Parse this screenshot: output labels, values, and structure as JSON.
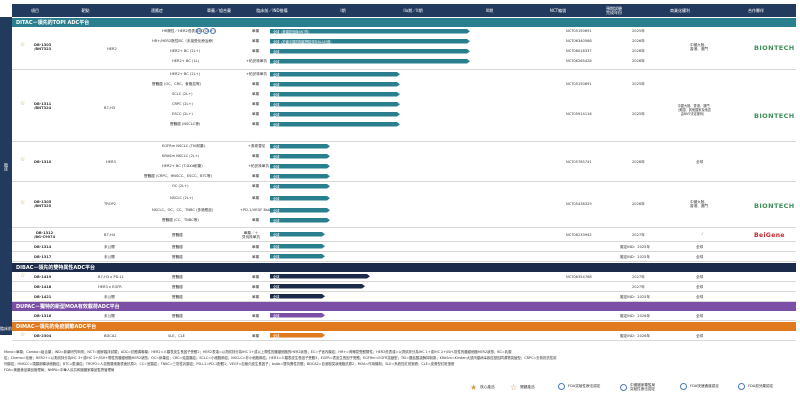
{
  "header": {
    "cols": [
      "項目",
      "靶點",
      "適應症",
      "單藥／組合藥",
      "臨床前／IND推備",
      "I期",
      "IIa期／II期",
      "III期",
      "NCT編號",
      "預期試驗\n完成年份",
      "商業化權利",
      "合作夥伴"
    ]
  },
  "sidebar": {
    "main_label": "臨床",
    "sub_label": "臨床前"
  },
  "sections": {
    "ditac": "DITAC－領先的TOPI ADC平台",
    "dibac": "DIBAC－領先的雙特異性ADC平台",
    "dupac": "DUPAC－獨特的新型MOA有效載荷ADC平台",
    "dimac": "DIMAC－領先的免疫調節ADC平台"
  },
  "products": {
    "db1303": "DB-1303\n/BNT323",
    "db1311": "DB-1311\n/BNT324",
    "db1310": "DB-1310",
    "db1305": "DB-1305\n/BNT325",
    "db1312": "DB-1312\n/BG-C9074",
    "db1314": "DB-1314",
    "db1317": "DB-1317",
    "db1419": "DB-1419",
    "db1418": "DB-1418",
    "db1421": "DB-1421",
    "db1316": "DB-1316",
    "db2304": "DB-2304"
  },
  "targets": {
    "her2": "HER2",
    "b7h3": "B7-H3",
    "her3": "HER3",
    "trop2": "TROP2",
    "b7h4": "B7-H4",
    "undisclosed": "未公開",
    "b7h3pdl1": "B7-H3 x PD-L1",
    "her3egfr": "HER3 x EGFR",
    "bdca2": "BDCA2"
  },
  "indications": {
    "r1": "HR陽性／HER2低表達BC (2L+)",
    "r2": "HR+/HER2陰性BC（未接受化療治療）",
    "r3": "HER2+ BC (2L+)",
    "r4": "HER2+ BC (1L)",
    "r5": "實體瘤 (OC、CRC、食管癌等)",
    "r6": "SCLC (2L+)",
    "r7": "CRPC (2L+)",
    "r8": "ESCC (2L+)",
    "r9": "實體瘤 (NSCLC等)",
    "r10": "EGFRm NSCLC (TKI耐藥)",
    "r11": "KRASm NSCLC (2L+)",
    "r12": "HER2+ BC (T-DXd耐藥)",
    "r13": "實體瘤 (CRPC、HNSCC、ESCC、BTC等)",
    "r14": "OC (2L+)",
    "r15": "NSCLC (2L+)",
    "r16": "NSCLC、OC、CC、TNBC (多適應症)",
    "r17": "實體瘤 (CC、TNBC等)",
    "r18": "實體瘤",
    "r19": "實體瘤",
    "r20": "實體瘤",
    "r21": "實體瘤",
    "r22": "實體瘤",
    "r23": "實體瘤",
    "r24": "實體瘤",
    "r25": "SLE、CLE"
  },
  "regimen": {
    "mono": "單藥",
    "combo1": "+帕妥珠單抗",
    "combo2": "+奧希替尼",
    "combo3": "+恩扎盧胺",
    "combo4": "+PD-1/VEGF BsAb",
    "combo5": "單藥／＋\n貝伐珠單抗"
  },
  "bars": {
    "b1": "全球（美國首個與BNT的）",
    "b2": "全球（於囊中國的關鍵實驗資料BLA計劃）",
    "b3": "全球",
    "b4": "全球",
    "b5": "全球",
    "b6": "全球",
    "b7": "全球",
    "b8": "全球",
    "b9": "全球",
    "b10": "全球",
    "b11": "全球",
    "b12": "全球",
    "b13": "全球",
    "b14": "全球",
    "b15": "全球",
    "b16": "全球",
    "b17": "全球",
    "b18": "全球",
    "b19": "全球",
    "b20": "全球",
    "b21": "全球",
    "b22": "全球",
    "b23": "全球",
    "b24": "全球",
    "b25": "全球",
    "b26": "全球",
    "b27": "全球",
    "b28": "全球",
    "b29": "全球"
  },
  "nct": {
    "n1": "NCT05150691",
    "n2": "NCT06340568",
    "n3": "NCT06018337",
    "n4": "NCT06265428",
    "n5": "NCT05150691",
    "n6": "NCT05914116",
    "n7": "NCT05785741",
    "n8": "NCT05438329",
    "n9": "NCT06233942",
    "n10": "NCT06354768",
    "n11": "—",
    "n12": "—"
  },
  "years": {
    "y1": "2025年",
    "y2": "2026年",
    "y3": "2026年",
    "y4": "2026年",
    "y5": "2025年",
    "y6": "2025年",
    "y7": "2026年",
    "y8": "2026年",
    "y9": "2027年",
    "y10": "擬定IND：2025年",
    "y11": "擬定IND：2025年",
    "y12": "2027年",
    "y13": "2027年",
    "y14": "擬定IND：2025年",
    "y15": "擬定IND：2026年",
    "y16": "擬定IND：2026年"
  },
  "rights": {
    "r1": "中國大陸、\n香港、澳門",
    "r2": "中國大陸、香港、澳門\n（美國、其他國家及地區\n由BNT決定權利）",
    "r3": "全球",
    "r4": "中國大陸、\n香港、澳門",
    "r5": "全球",
    "r6": "全球",
    "r7": "全球",
    "r8": "全球",
    "r9": "全球",
    "r10": "全球",
    "r11": "全球",
    "r12": "全球"
  },
  "partners": {
    "biontech": "BIONTECH",
    "beigene": "BeiGene"
  },
  "footer": {
    "line1": "Mono=單藥；Combo=組合藥；IND=新藥研究申請；NCT=國家臨床試驗；ADC=抗體偶聯藥；HER2=人類表皮生長因子受體2；HER2表達=以測試評分為IHC 1+或以上陽性的腫瘤細胞的HER2狀態；EC=子宮內膜癌；HR+=荷爾蒙受體陽性；HER2低表達=以測試評分為IHC 1+或IHC 2+/ISH-陰性的腫瘤細胞HER2狀態；BC=乳腺",
    "line2": "癌；Chemo=化療；HER2+=以測試評分為IHC 3+或IHC 2+/ISH+陽性的腫瘤細胞HER2狀態；OC=卵巢癌；CRC=結直腸癌；SCLC=小細胞肺癌；NSCLC=非小細胞肺癌；HER3=人類表皮生長因子受體3；EGFR=表皮生長因子受體；EGFRm=EGFR突變型；TKI=酪氨酸激酶抑制劑；KRASm=Kirsten大鼠肉瘤病毒致癌基因同源物突變型；CRPC=去勢抵抗性前",
    "line3": "列腺癌；HNSCC=頭頸部鱗狀細胞癌；BTC=膽道癌；TROP2=人滋養層細胞表面抗原2；CC=宮頸癌；TNBC=三陰性乳腺癌；PD-L1=PD-1配體1；VEGF=血管內皮生長因子；bsAb=雙特異性抗體；BDCA2=血液樹突狀細胞抗原2；MOA=作用機制；SLE=系統性紅斑狼瘡；CLE=皮膚型紅斑狼瘡",
    "line4": "FDA=美國食品藥品管理局；NMPA=中華人民共和國國家藥品監督管理局"
  },
  "legend": {
    "core": "核心產品",
    "key": "關鍵產品",
    "fda_bt": "FDA突破性療法認定",
    "cn_bt": "中國國家藥監局\n突破性療法認定",
    "fda_ft": "FDA快速通道認定",
    "fda_od": "FDA孤兒藥認定"
  },
  "colors": {
    "navy": "#223a5e",
    "teal": "#2a7f8f",
    "purple": "#7b4fa6",
    "orange": "#e07a1f",
    "gold": "#c8a24a",
    "green": "#3e8e5a",
    "red": "#c8252c"
  }
}
